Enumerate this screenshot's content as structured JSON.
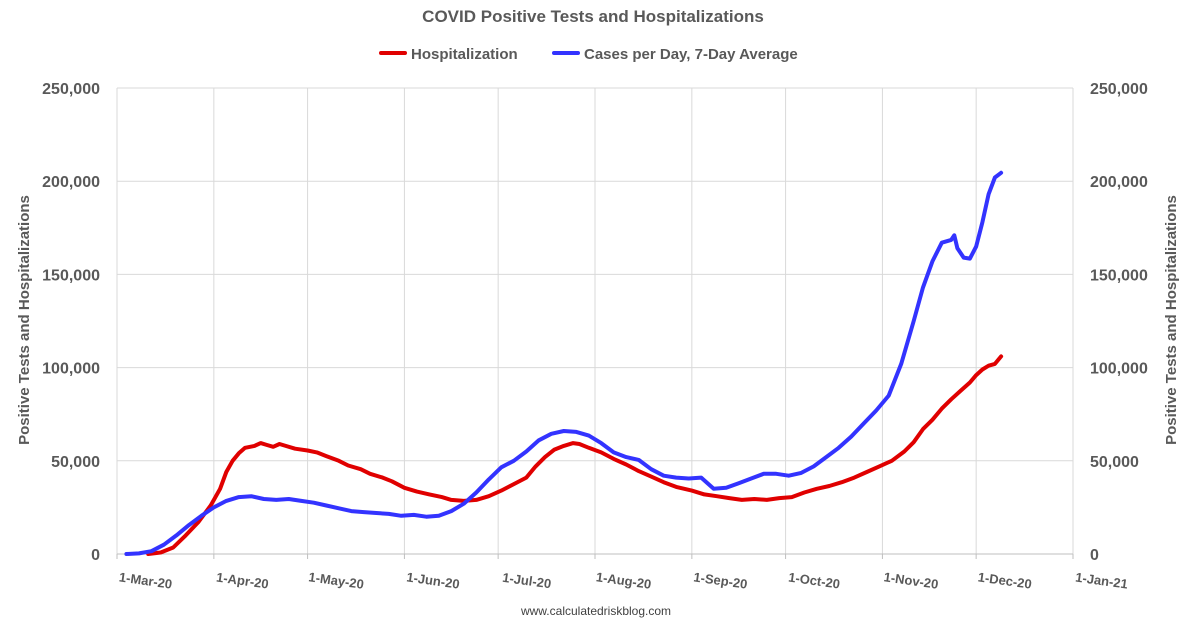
{
  "chart_data": {
    "type": "line",
    "title": "COVID Positive Tests and Hospitalizations",
    "ylabel_left": "Positive Tests and Hospitalizations",
    "ylabel_right": "Positive Tests and Hospitalizations",
    "source": "www.calculatedriskblog.com",
    "ylim": [
      0,
      250000
    ],
    "y_ticks": [
      {
        "value": 0,
        "label": "0"
      },
      {
        "value": 50000,
        "label": "50,000"
      },
      {
        "value": 100000,
        "label": "100,000"
      },
      {
        "value": 150000,
        "label": "150,000"
      },
      {
        "value": 200000,
        "label": "200,000"
      },
      {
        "value": 250000,
        "label": "250,000"
      }
    ],
    "xlim": [
      "2020-03-01",
      "2021-01-01"
    ],
    "x_ticks": [
      {
        "date": "2020-03-01",
        "label": "1-Mar-20"
      },
      {
        "date": "2020-04-01",
        "label": "1-Apr-20"
      },
      {
        "date": "2020-05-01",
        "label": "1-May-20"
      },
      {
        "date": "2020-06-01",
        "label": "1-Jun-20"
      },
      {
        "date": "2020-07-01",
        "label": "1-Jul-20"
      },
      {
        "date": "2020-08-01",
        "label": "1-Aug-20"
      },
      {
        "date": "2020-09-01",
        "label": "1-Sep-20"
      },
      {
        "date": "2020-10-01",
        "label": "1-Oct-20"
      },
      {
        "date": "2020-11-01",
        "label": "1-Nov-20"
      },
      {
        "date": "2020-12-01",
        "label": "1-Dec-20"
      },
      {
        "date": "2021-01-01",
        "label": "1-Jan-21"
      }
    ],
    "grid": true,
    "legend_placement": "top",
    "series": [
      {
        "name": "Hospitalization",
        "color": "#e00000",
        "points": [
          [
            "2020-03-11",
            0
          ],
          [
            "2020-03-15",
            800
          ],
          [
            "2020-03-19",
            3500
          ],
          [
            "2020-03-23",
            10000
          ],
          [
            "2020-03-27",
            17000
          ],
          [
            "2020-03-31",
            26000
          ],
          [
            "2020-04-03",
            35000
          ],
          [
            "2020-04-05",
            44000
          ],
          [
            "2020-04-07",
            50000
          ],
          [
            "2020-04-09",
            54000
          ],
          [
            "2020-04-11",
            57000
          ],
          [
            "2020-04-14",
            58000
          ],
          [
            "2020-04-16",
            59500
          ],
          [
            "2020-04-18",
            58500
          ],
          [
            "2020-04-20",
            57500
          ],
          [
            "2020-04-22",
            59000
          ],
          [
            "2020-04-24",
            58000
          ],
          [
            "2020-04-27",
            56500
          ],
          [
            "2020-05-01",
            55500
          ],
          [
            "2020-05-04",
            54500
          ],
          [
            "2020-05-07",
            52500
          ],
          [
            "2020-05-11",
            50000
          ],
          [
            "2020-05-14",
            47500
          ],
          [
            "2020-05-18",
            45500
          ],
          [
            "2020-05-21",
            43000
          ],
          [
            "2020-05-25",
            41000
          ],
          [
            "2020-05-28",
            39000
          ],
          [
            "2020-06-01",
            35500
          ],
          [
            "2020-06-05",
            33500
          ],
          [
            "2020-06-09",
            32000
          ],
          [
            "2020-06-13",
            30500
          ],
          [
            "2020-06-16",
            29000
          ],
          [
            "2020-06-20",
            28500
          ],
          [
            "2020-06-24",
            29000
          ],
          [
            "2020-06-28",
            31000
          ],
          [
            "2020-07-02",
            34000
          ],
          [
            "2020-07-06",
            37500
          ],
          [
            "2020-07-10",
            41000
          ],
          [
            "2020-07-13",
            47000
          ],
          [
            "2020-07-16",
            52000
          ],
          [
            "2020-07-19",
            56000
          ],
          [
            "2020-07-22",
            58000
          ],
          [
            "2020-07-25",
            59500
          ],
          [
            "2020-07-27",
            59000
          ],
          [
            "2020-07-30",
            57000
          ],
          [
            "2020-08-03",
            54500
          ],
          [
            "2020-08-07",
            51000
          ],
          [
            "2020-08-11",
            48000
          ],
          [
            "2020-08-15",
            44500
          ],
          [
            "2020-08-19",
            41500
          ],
          [
            "2020-08-23",
            38500
          ],
          [
            "2020-08-27",
            36000
          ],
          [
            "2020-09-01",
            34000
          ],
          [
            "2020-09-05",
            32000
          ],
          [
            "2020-09-09",
            31000
          ],
          [
            "2020-09-13",
            30000
          ],
          [
            "2020-09-17",
            29000
          ],
          [
            "2020-09-21",
            29500
          ],
          [
            "2020-09-25",
            29000
          ],
          [
            "2020-09-29",
            30000
          ],
          [
            "2020-10-03",
            30500
          ],
          [
            "2020-10-07",
            33000
          ],
          [
            "2020-10-11",
            35000
          ],
          [
            "2020-10-15",
            36500
          ],
          [
            "2020-10-19",
            38500
          ],
          [
            "2020-10-23",
            41000
          ],
          [
            "2020-10-27",
            44000
          ],
          [
            "2020-10-31",
            47000
          ],
          [
            "2020-11-04",
            50000
          ],
          [
            "2020-11-08",
            55000
          ],
          [
            "2020-11-11",
            60000
          ],
          [
            "2020-11-14",
            67000
          ],
          [
            "2020-11-17",
            72000
          ],
          [
            "2020-11-20",
            78000
          ],
          [
            "2020-11-23",
            83000
          ],
          [
            "2020-11-26",
            87500
          ],
          [
            "2020-11-29",
            92000
          ],
          [
            "2020-12-01",
            96000
          ],
          [
            "2020-12-03",
            99000
          ],
          [
            "2020-12-05",
            101000
          ],
          [
            "2020-12-07",
            102000
          ],
          [
            "2020-12-09",
            106000
          ]
        ]
      },
      {
        "name": "Cases per Day, 7-Day Average",
        "color": "#3333ff",
        "points": [
          [
            "2020-03-04",
            0
          ],
          [
            "2020-03-08",
            300
          ],
          [
            "2020-03-12",
            1500
          ],
          [
            "2020-03-16",
            5000
          ],
          [
            "2020-03-20",
            10000
          ],
          [
            "2020-03-24",
            15500
          ],
          [
            "2020-03-28",
            20500
          ],
          [
            "2020-04-01",
            25000
          ],
          [
            "2020-04-05",
            28500
          ],
          [
            "2020-04-09",
            30500
          ],
          [
            "2020-04-13",
            31000
          ],
          [
            "2020-04-17",
            29500
          ],
          [
            "2020-04-21",
            29000
          ],
          [
            "2020-04-25",
            29500
          ],
          [
            "2020-04-29",
            28500
          ],
          [
            "2020-05-03",
            27500
          ],
          [
            "2020-05-07",
            26000
          ],
          [
            "2020-05-11",
            24500
          ],
          [
            "2020-05-15",
            23000
          ],
          [
            "2020-05-19",
            22500
          ],
          [
            "2020-05-23",
            22000
          ],
          [
            "2020-05-27",
            21500
          ],
          [
            "2020-05-31",
            20500
          ],
          [
            "2020-06-04",
            21000
          ],
          [
            "2020-06-08",
            20000
          ],
          [
            "2020-06-12",
            20500
          ],
          [
            "2020-06-16",
            23000
          ],
          [
            "2020-06-20",
            27000
          ],
          [
            "2020-06-24",
            33000
          ],
          [
            "2020-06-28",
            40000
          ],
          [
            "2020-07-02",
            46500
          ],
          [
            "2020-07-06",
            50000
          ],
          [
            "2020-07-10",
            55000
          ],
          [
            "2020-07-14",
            61000
          ],
          [
            "2020-07-18",
            64500
          ],
          [
            "2020-07-22",
            66000
          ],
          [
            "2020-07-26",
            65500
          ],
          [
            "2020-07-30",
            63500
          ],
          [
            "2020-08-03",
            59500
          ],
          [
            "2020-08-07",
            54500
          ],
          [
            "2020-08-11",
            52000
          ],
          [
            "2020-08-15",
            50500
          ],
          [
            "2020-08-19",
            45500
          ],
          [
            "2020-08-23",
            42000
          ],
          [
            "2020-08-27",
            41000
          ],
          [
            "2020-08-31",
            40500
          ],
          [
            "2020-09-04",
            41000
          ],
          [
            "2020-09-08",
            35000
          ],
          [
            "2020-09-12",
            35500
          ],
          [
            "2020-09-16",
            38000
          ],
          [
            "2020-09-20",
            40500
          ],
          [
            "2020-09-24",
            43000
          ],
          [
            "2020-09-28",
            43000
          ],
          [
            "2020-10-02",
            42000
          ],
          [
            "2020-10-06",
            43500
          ],
          [
            "2020-10-10",
            47000
          ],
          [
            "2020-10-14",
            52000
          ],
          [
            "2020-10-18",
            57000
          ],
          [
            "2020-10-22",
            63000
          ],
          [
            "2020-10-26",
            70000
          ],
          [
            "2020-10-30",
            77000
          ],
          [
            "2020-11-03",
            85000
          ],
          [
            "2020-11-07",
            102000
          ],
          [
            "2020-11-11",
            125000
          ],
          [
            "2020-11-14",
            143000
          ],
          [
            "2020-11-17",
            157000
          ],
          [
            "2020-11-20",
            167000
          ],
          [
            "2020-11-23",
            168500
          ],
          [
            "2020-11-24",
            171000
          ],
          [
            "2020-11-25",
            164000
          ],
          [
            "2020-11-27",
            159000
          ],
          [
            "2020-11-29",
            158500
          ],
          [
            "2020-12-01",
            165000
          ],
          [
            "2020-12-03",
            178000
          ],
          [
            "2020-12-05",
            193000
          ],
          [
            "2020-12-07",
            202000
          ],
          [
            "2020-12-09",
            204500
          ]
        ]
      }
    ]
  }
}
